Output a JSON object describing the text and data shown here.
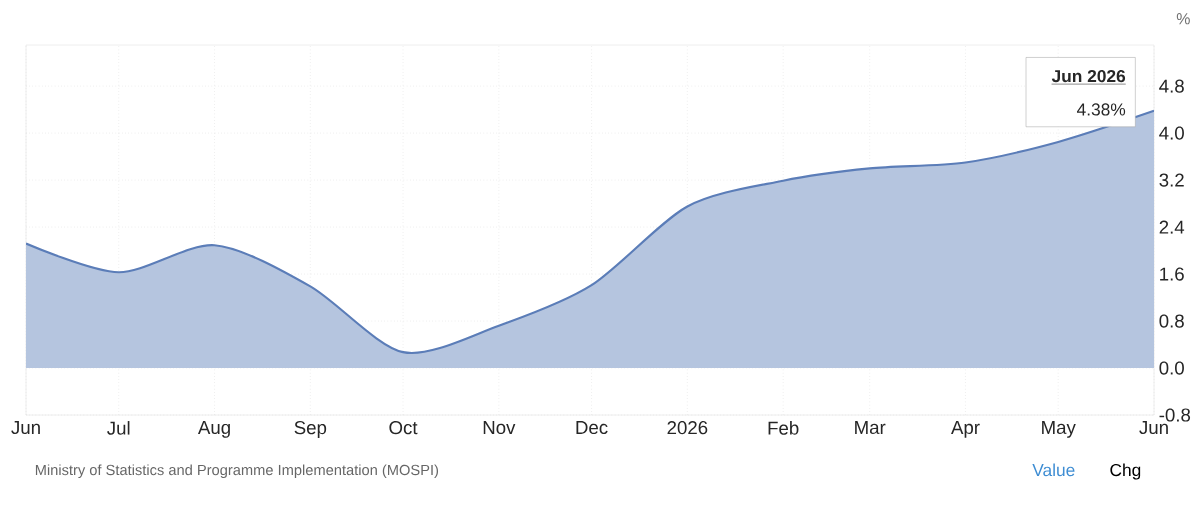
{
  "chart_data": {
    "type": "area",
    "x": [
      "2025-06",
      "2025-07",
      "2025-08",
      "2025-09",
      "2025-10",
      "2025-11",
      "2025-12",
      "2026-01",
      "2026-02",
      "2026-03",
      "2026-04",
      "2026-05",
      "2026-06"
    ],
    "series": [
      {
        "color": "#5b7db8",
        "values": [
          2.12,
          1.63,
          2.09,
          1.39,
          0.27,
          0.72,
          1.41,
          2.75,
          3.19,
          3.4,
          3.5,
          3.85,
          4.38
        ]
      }
    ],
    "xlim": [
      "2025-06",
      "2026-06"
    ],
    "xticks": [
      {
        "value": "2025-06",
        "label": "Jun"
      },
      {
        "value": "2025-07",
        "label": "Jul"
      },
      {
        "value": "2025-08",
        "label": "Aug"
      },
      {
        "value": "2025-09",
        "label": "Sep"
      },
      {
        "value": "2025-10",
        "label": "Oct"
      },
      {
        "value": "2025-11",
        "label": "Nov"
      },
      {
        "value": "2025-12",
        "label": "Dec"
      },
      {
        "value": "2026-01",
        "label": "2026"
      },
      {
        "value": "2026-02",
        "label": "Feb"
      },
      {
        "value": "2026-03",
        "label": "Mar"
      },
      {
        "value": "2026-04",
        "label": "Apr"
      },
      {
        "value": "2026-05",
        "label": "May"
      },
      {
        "value": "2026-06",
        "label": "Jun"
      }
    ],
    "ylim": [
      -0.8,
      5.5
    ],
    "yticks": [
      {
        "value": -0.8,
        "label": "-0.8"
      },
      {
        "value": 0,
        "label": "0.0"
      },
      {
        "value": 0.8,
        "label": "0.8"
      },
      {
        "value": 1.6,
        "label": "1.6"
      },
      {
        "value": 2.4,
        "label": "2.4"
      },
      {
        "value": 3.2,
        "label": "3.2"
      },
      {
        "value": 4.0,
        "label": "4.0"
      },
      {
        "value": 4.8,
        "label": "4.8"
      }
    ],
    "ylabel": "%",
    "grid": true,
    "annotations": [
      {
        "text": "Jun 2026",
        "x": "2026-06",
        "y": 4.38
      },
      {
        "text": "4.38%",
        "x": "2026-06",
        "y": 4.38
      },
      "Ministry of Statistics and Programme Implementation (MOSPI)",
      "Value",
      "Chg"
    ]
  }
}
